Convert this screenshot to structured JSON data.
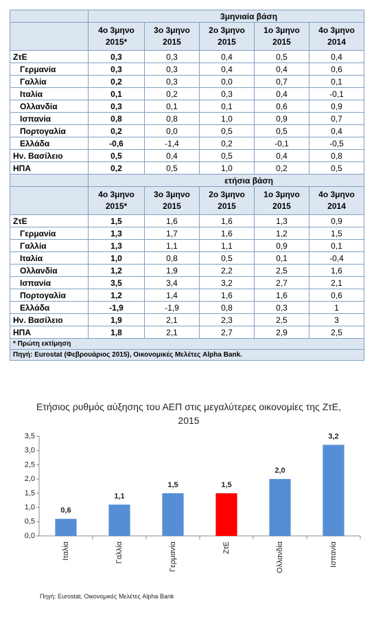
{
  "table": {
    "sections": [
      {
        "title": "3μηνιαία βάση",
        "columns": [
          [
            "4ο 3μηνο",
            "2015*"
          ],
          [
            "3ο 3μηνο",
            "2015"
          ],
          [
            "2ο 3μηνο",
            "2015"
          ],
          [
            "1ο 3μηνο",
            "2015"
          ],
          [
            "4ο 3μηνο",
            "2014"
          ]
        ],
        "rows": [
          {
            "label": "ΖτΕ",
            "values": [
              "0,3",
              "0,3",
              "0,4",
              "0,5",
              "0,4"
            ]
          },
          {
            "label": "Γερμανία",
            "values": [
              "0,3",
              "0,3",
              "0,4",
              "0,4",
              "0,6"
            ]
          },
          {
            "label": "Γαλλία",
            "values": [
              "0,2",
              "0,3",
              "0,0",
              "0,7",
              "0,1"
            ]
          },
          {
            "label": "Ιταλία",
            "values": [
              "0,1",
              "0,2",
              "0,3",
              "0,4",
              "-0,1"
            ]
          },
          {
            "label": "Ολλανδία",
            "values": [
              "0,3",
              "0,1",
              "0,1",
              "0,6",
              "0,9"
            ]
          },
          {
            "label": "Ισπανία",
            "values": [
              "0,8",
              "0,8",
              "1,0",
              "0,9",
              "0,7"
            ]
          },
          {
            "label": "Πορτογαλία",
            "values": [
              "0,2",
              "0,0",
              "0,5",
              "0,5",
              "0,4"
            ]
          },
          {
            "label": "Ελλάδα",
            "values": [
              "-0,6",
              "-1,4",
              "0,2",
              "-0,1",
              "-0,5"
            ]
          },
          {
            "label": "Ην. Βασίλειο",
            "values": [
              "0,5",
              "0,4",
              "0,5",
              "0,4",
              "0,8"
            ]
          },
          {
            "label": "ΗΠΑ",
            "values": [
              "0,2",
              "0,5",
              "1,0",
              "0,2",
              "0,5"
            ]
          }
        ]
      },
      {
        "title": "ετήσια βάση",
        "columns": [
          [
            "4ο 3μηνο",
            "2015*"
          ],
          [
            "3ο 3μηνο",
            "2015"
          ],
          [
            "2ο 3μηνο",
            "2015"
          ],
          [
            "1ο 3μηνο",
            "2015"
          ],
          [
            "4ο 3μηνο",
            "2014"
          ]
        ],
        "rows": [
          {
            "label": "ΖτΕ",
            "values": [
              "1,5",
              "1,6",
              "1,6",
              "1,3",
              "0,9"
            ]
          },
          {
            "label": "Γερμανία",
            "values": [
              "1,3",
              "1,7",
              "1,6",
              "1,2",
              "1,5"
            ]
          },
          {
            "label": "Γαλλία",
            "values": [
              "1,3",
              "1,1",
              "1,1",
              "0,9",
              "0,1"
            ]
          },
          {
            "label": "Ιταλία",
            "values": [
              "1,0",
              "0,8",
              "0,5",
              "0,1",
              "-0,4"
            ]
          },
          {
            "label": "Ολλανδία",
            "values": [
              "1,2",
              "1,9",
              "2,2",
              "2,5",
              "1,6"
            ]
          },
          {
            "label": "Ισπανία",
            "values": [
              "3,5",
              "3,4",
              "3,2",
              "2,7",
              "2,1"
            ]
          },
          {
            "label": "Πορτογαλία",
            "values": [
              "1,2",
              "1,4",
              "1,6",
              "1,6",
              "0,6"
            ]
          },
          {
            "label": "Ελλάδα",
            "values": [
              "-1,9",
              "-1,9",
              "0,8",
              "0,3",
              "1"
            ]
          },
          {
            "label": "Ην. Βασίλειο",
            "values": [
              "1,9",
              "2,1",
              "2,3",
              "2,5",
              "3"
            ]
          },
          {
            "label": "ΗΠΑ",
            "values": [
              "1,8",
              "2,1",
              "2,7",
              "2,9",
              "2,5"
            ]
          }
        ]
      }
    ],
    "notes": [
      "* Πρώτη εκτίμηση",
      "Πηγή: Eurostat (Φεβρουάριος 2015), Οικονομικές Μελέτες Alpha Bank."
    ]
  },
  "chart_data": {
    "type": "bar",
    "title": "Ετήσιος ρυθμός αύξησης του ΑΕΠ στις μεγαλύτερες οικονομίες της ΖτΕ, 2015",
    "categories": [
      "Ιταλία",
      "Γαλλία",
      "Γερμανία",
      "ΖτΕ",
      "Ολλανδία",
      "Ισπανία"
    ],
    "values": [
      0.6,
      1.1,
      1.5,
      1.5,
      2.0,
      3.2
    ],
    "value_labels": [
      "0,6",
      "1,1",
      "1,5",
      "1,5",
      "2,0",
      "3,2"
    ],
    "colors": [
      "#558ed5",
      "#558ed5",
      "#558ed5",
      "#ff0000",
      "#558ed5",
      "#558ed5"
    ],
    "ylim": [
      0,
      3.5
    ],
    "yticks": [
      {
        "value": 0,
        "label": "0,0"
      },
      {
        "value": 0.5,
        "label": "0,5"
      },
      {
        "value": 1,
        "label": "1,0"
      },
      {
        "value": 1.5,
        "label": "1,5"
      },
      {
        "value": 2,
        "label": "2,0"
      },
      {
        "value": 2.5,
        "label": "2,5"
      },
      {
        "value": 3,
        "label": "3,0"
      },
      {
        "value": 3.5,
        "label": "3,5"
      }
    ],
    "grid": false,
    "source": "Πηγή: Eurostat, Οικονομικές Μελέτες Alpha Bank"
  }
}
